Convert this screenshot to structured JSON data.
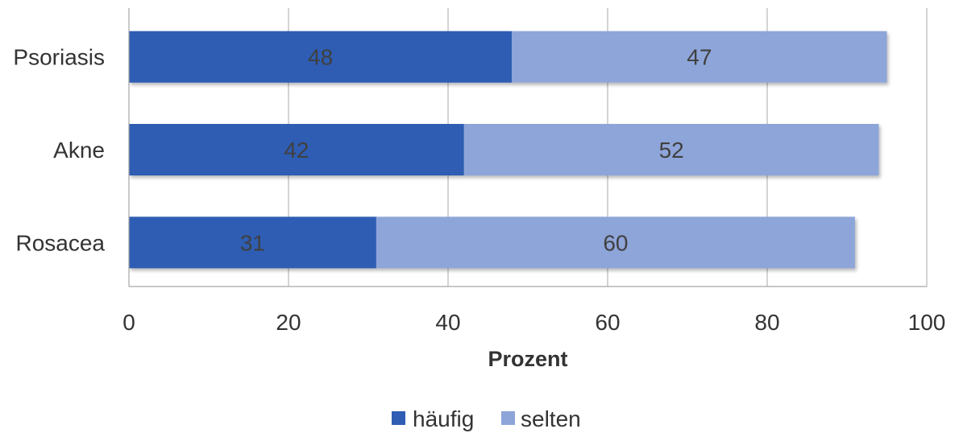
{
  "chart_data": {
    "type": "bar",
    "orientation": "horizontal",
    "stacked": true,
    "categories": [
      "Psoriasis",
      "Akne",
      "Rosacea"
    ],
    "series": [
      {
        "name": "häufig",
        "values": [
          48,
          42,
          31
        ],
        "color": "#2E5DB3"
      },
      {
        "name": "selten",
        "values": [
          47,
          52,
          60
        ],
        "color": "#8EA5D9"
      }
    ],
    "xlabel": "Prozent",
    "ylabel": "",
    "xlim": [
      0,
      100
    ],
    "xticks": [
      "0",
      "20",
      "40",
      "60",
      "80",
      "100"
    ],
    "grid": "vertical",
    "legend_position": "bottom"
  }
}
